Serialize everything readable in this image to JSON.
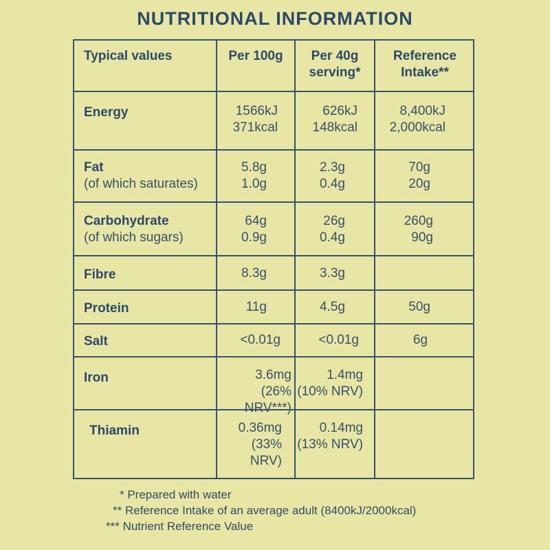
{
  "title": "NUTRITIONAL INFORMATION",
  "headers": {
    "typical": "Typical values",
    "per100": "Per 100g",
    "per40_line1": "Per 40g",
    "per40_line2": "serving*",
    "ri_line1": "Reference",
    "ri_line2": "Intake**"
  },
  "rows": {
    "energy": {
      "label": "Energy",
      "per100": [
        "1566kJ",
        "371kcal"
      ],
      "per40": [
        "626kJ",
        "148kcal"
      ],
      "ri": [
        "8,400kJ",
        "2,000kcal"
      ]
    },
    "fat": {
      "label": "Fat",
      "sub": "(of which saturates)",
      "per100": [
        "5.8g",
        "1.0g"
      ],
      "per40": [
        "2.3g",
        "0.4g"
      ],
      "ri": [
        "70g",
        "20g"
      ]
    },
    "carb": {
      "label": "Carbohydrate",
      "sub": "(of which sugars)",
      "per100": [
        "64g",
        "0.9g"
      ],
      "per40": [
        "26g",
        "0.4g"
      ],
      "ri": [
        "260g",
        "90g"
      ]
    },
    "fibre": {
      "label": "Fibre",
      "per100": "8.3g",
      "per40": "3.3g"
    },
    "protein": {
      "label": "Protein",
      "per100": "11g",
      "per40": "4.5g",
      "ri": "50g"
    },
    "salt": {
      "label": "Salt",
      "per100": "<0.01g",
      "per40": "<0.01g",
      "ri": "6g"
    },
    "iron": {
      "label": "Iron",
      "per100": [
        "3.6mg",
        "(26% NRV***)"
      ],
      "per40": [
        "1.4mg",
        "(10% NRV)"
      ]
    },
    "thiamin": {
      "label": "Thiamin",
      "per100": [
        "0.36mg",
        "(33% NRV)"
      ],
      "per40": [
        "0.14mg",
        "(13% NRV)"
      ]
    }
  },
  "footnotes": [
    "* Prepared with water",
    "** Reference Intake of an average adult (8400kJ/2000kcal)",
    "*** Nutrient Reference Value"
  ]
}
